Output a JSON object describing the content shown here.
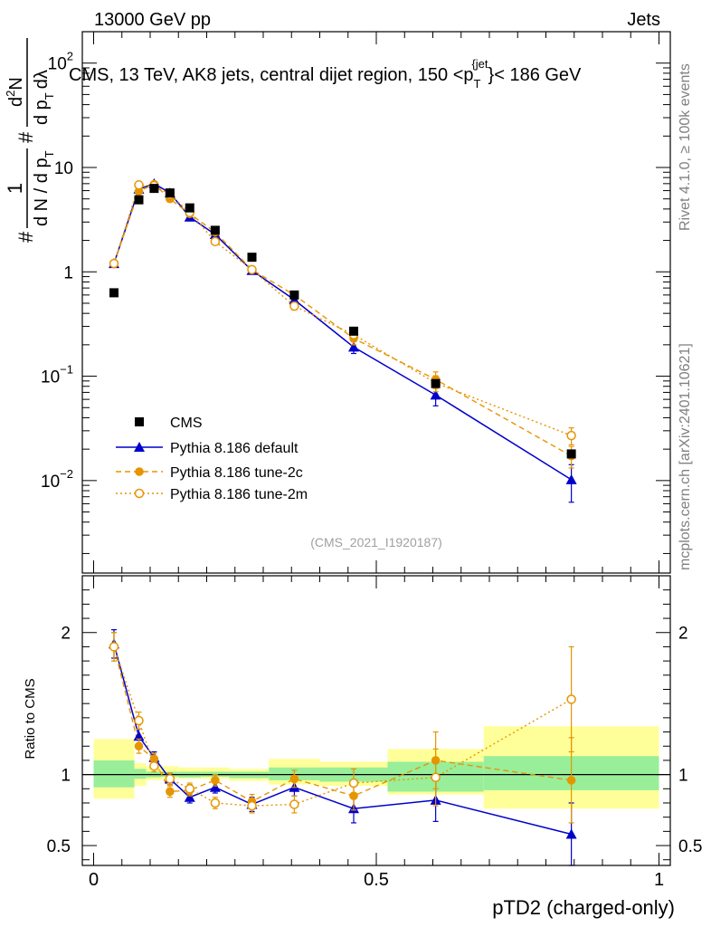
{
  "header": {
    "left": "13000 GeV pp",
    "right": "Jets"
  },
  "side": {
    "rivet": "Rivet 4.1.0, ≥ 100k events",
    "mcplots": "mcplots.cern.ch [arXiv:2401.10621]"
  },
  "colors": {
    "cms": "#000000",
    "default": "#0000cc",
    "tune2c": "#e69500",
    "tune2m": "#e69500",
    "band_inner": "#99ee99",
    "band_outer": "#ffff99"
  },
  "chart_data": [
    {
      "type": "scatter",
      "panel": "main",
      "title": "CMS, 13 TeV, AK8 jets, central dijet region, 150 <p",
      "title_sub": "T",
      "title_sup": "{jet",
      "title_tail": "}< 186 GeV",
      "analysis_tag": "(CMS_2021_I1920187)",
      "yscale": "log",
      "ylim": [
        0.0013,
        200
      ],
      "xlim": [
        -0.02,
        1.02
      ],
      "ylabel_parts": {
        "pre": "#",
        "frac_num": "1",
        "frac_den": "d N / d p",
        "frac_den_sub": "T",
        "mid": "#",
        "frac2_num": "d",
        "frac2_num_sup": "2",
        "frac2_num_tail": "N",
        "frac2_den": "d p",
        "frac2_den_sub": "T",
        "frac2_den_tail": "dλ"
      },
      "yticks": [
        {
          "v": 100,
          "base": "10",
          "exp": "2"
        },
        {
          "v": 10,
          "base": "10",
          "exp": ""
        },
        {
          "v": 1,
          "base": "1",
          "exp": ""
        },
        {
          "v": 0.1,
          "base": "10",
          "exp": "−1"
        },
        {
          "v": 0.01,
          "base": "10",
          "exp": "−2"
        }
      ],
      "legend": [
        "CMS",
        "Pythia 8.186 default",
        "Pythia 8.186 tune-2c",
        "Pythia 8.186 tune-2m"
      ],
      "x": [
        0.036,
        0.08,
        0.107,
        0.135,
        0.17,
        0.215,
        0.28,
        0.355,
        0.46,
        0.605,
        0.845
      ],
      "series": [
        {
          "name": "CMS",
          "values": [
            0.63,
            4.9,
            6.3,
            5.7,
            4.1,
            2.5,
            1.38,
            0.6,
            0.27,
            0.085,
            0.018
          ]
        },
        {
          "name": "Pythia 8.186 default",
          "values": [
            1.2,
            6.2,
            7.0,
            5.7,
            3.35,
            2.28,
            1.03,
            0.54,
            0.19,
            0.066,
            0.0102
          ],
          "err_lo": [
            0.05,
            0.2,
            0.2,
            0.2,
            0.15,
            0.1,
            0.05,
            0.04,
            0.025,
            0.014,
            0.004
          ],
          "err_hi": [
            0.05,
            0.2,
            0.2,
            0.2,
            0.15,
            0.1,
            0.05,
            0.04,
            0.025,
            0.014,
            0.004
          ]
        },
        {
          "name": "Pythia 8.186 tune-2c",
          "values": [
            1.2,
            5.9,
            6.9,
            5.0,
            3.6,
            2.4,
            1.05,
            0.6,
            0.23,
            0.093,
            0.0172
          ],
          "err_lo": [
            0.05,
            0.2,
            0.2,
            0.2,
            0.15,
            0.1,
            0.05,
            0.04,
            0.03,
            0.017,
            0.004
          ],
          "err_hi": [
            0.05,
            0.2,
            0.2,
            0.2,
            0.15,
            0.1,
            0.05,
            0.04,
            0.03,
            0.017,
            0.004
          ]
        },
        {
          "name": "Pythia 8.186 tune-2m",
          "values": [
            1.2,
            6.8,
            6.7,
            5.5,
            3.7,
            1.95,
            1.05,
            0.47,
            0.25,
            0.086,
            0.027
          ],
          "err_lo": [
            0.05,
            0.2,
            0.2,
            0.2,
            0.15,
            0.1,
            0.05,
            0.04,
            0.03,
            0.015,
            0.005
          ],
          "err_hi": [
            0.05,
            0.2,
            0.2,
            0.2,
            0.15,
            0.1,
            0.05,
            0.04,
            0.03,
            0.015,
            0.005
          ]
        }
      ]
    },
    {
      "type": "scatter",
      "panel": "ratio",
      "ylabel": "Ratio to CMS",
      "xlabel": "pTD2 (charged-only)",
      "ylim": [
        0.36,
        2.4
      ],
      "xlim": [
        -0.02,
        1.02
      ],
      "yticks": [
        "0.5",
        "1",
        "2"
      ],
      "xticks": [
        "0",
        "0.5",
        "1"
      ],
      "bins": [
        [
          0,
          0.072
        ],
        [
          0.072,
          0.093
        ],
        [
          0.093,
          0.12
        ],
        [
          0.12,
          0.15
        ],
        [
          0.15,
          0.19
        ],
        [
          0.19,
          0.24
        ],
        [
          0.24,
          0.31
        ],
        [
          0.31,
          0.4
        ],
        [
          0.4,
          0.52
        ],
        [
          0.52,
          0.69
        ],
        [
          0.69,
          1.0
        ]
      ],
      "band_inner": [
        [
          0.91,
          1.1
        ],
        [
          0.97,
          1.04
        ],
        [
          0.98,
          1.02
        ],
        [
          0.985,
          1.02
        ],
        [
          0.98,
          1.02
        ],
        [
          0.985,
          1.02
        ],
        [
          0.975,
          1.02
        ],
        [
          0.96,
          1.05
        ],
        [
          0.95,
          1.05
        ],
        [
          0.88,
          1.09
        ],
        [
          0.89,
          1.13
        ]
      ],
      "band_outer": [
        [
          0.83,
          1.25
        ],
        [
          0.92,
          1.08
        ],
        [
          0.96,
          1.06
        ],
        [
          0.97,
          1.06
        ],
        [
          0.97,
          1.05
        ],
        [
          0.97,
          1.05
        ],
        [
          0.955,
          1.04
        ],
        [
          0.93,
          1.11
        ],
        [
          0.92,
          1.09
        ],
        [
          0.86,
          1.18
        ],
        [
          0.76,
          1.34
        ]
      ],
      "x": [
        0.036,
        0.08,
        0.107,
        0.135,
        0.17,
        0.215,
        0.28,
        0.355,
        0.46,
        0.605,
        0.845
      ],
      "series": [
        {
          "name": "Pythia 8.186 default",
          "values": [
            1.92,
            1.27,
            1.12,
            0.97,
            0.84,
            0.91,
            0.79,
            0.91,
            0.76,
            0.82,
            0.58
          ],
          "err": [
            0.1,
            0.05,
            0.04,
            0.04,
            0.04,
            0.04,
            0.05,
            0.06,
            0.1,
            0.15,
            0.22
          ]
        },
        {
          "name": "Pythia 8.186 tune-2c",
          "values": [
            1.9,
            1.2,
            1.11,
            0.88,
            0.89,
            0.96,
            0.81,
            0.97,
            0.85,
            1.1,
            0.96
          ],
          "err": [
            0.1,
            0.05,
            0.04,
            0.04,
            0.04,
            0.04,
            0.05,
            0.06,
            0.1,
            0.2,
            0.3
          ]
        },
        {
          "name": "Pythia 8.186 tune-2m",
          "values": [
            1.9,
            1.38,
            1.06,
            0.97,
            0.9,
            0.8,
            0.78,
            0.79,
            0.94,
            0.98,
            1.53
          ],
          "err": [
            0.1,
            0.06,
            0.04,
            0.04,
            0.04,
            0.04,
            0.05,
            0.06,
            0.1,
            0.2,
            0.37
          ]
        }
      ]
    }
  ]
}
